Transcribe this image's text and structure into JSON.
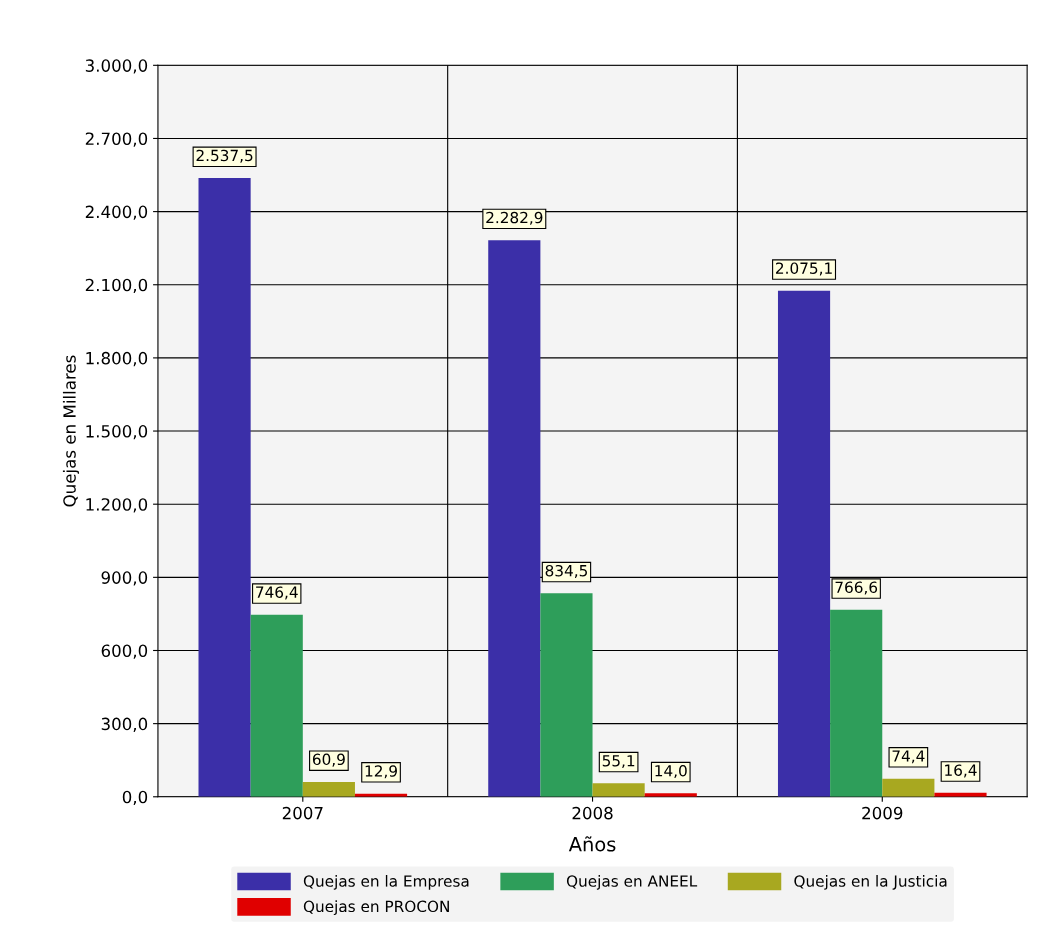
{
  "chart_data": {
    "type": "bar",
    "xlabel": "Años",
    "ylabel": "Quejas en Millares",
    "categories": [
      "2007",
      "2008",
      "2009"
    ],
    "series": [
      {
        "name": "Quejas en la Empresa",
        "color": "#3b2fa8",
        "values": [
          2537.5,
          2282.9,
          2075.1
        ],
        "value_labels": [
          "2.537,5",
          "2.282,9",
          "2.075,1"
        ]
      },
      {
        "name": "Quejas en ANEEL",
        "color": "#2e9e5a",
        "values": [
          746.4,
          834.5,
          766.6
        ],
        "value_labels": [
          "746,4",
          "834,5",
          "766,6"
        ]
      },
      {
        "name": "Quejas en la Justicia",
        "color": "#a8a820",
        "values": [
          60.9,
          55.1,
          74.4
        ],
        "value_labels": [
          "60,9",
          "55,1",
          "74,4"
        ]
      },
      {
        "name": "Quejas en PROCON",
        "color": "#e00000",
        "values": [
          12.9,
          14.0,
          16.4
        ],
        "value_labels": [
          "12,9",
          "14,0",
          "16,4"
        ]
      }
    ],
    "ylim": [
      0,
      3000
    ],
    "yticks": [
      {
        "value": 0,
        "label": "0,0"
      },
      {
        "value": 300,
        "label": "300,0"
      },
      {
        "value": 600,
        "label": "600,0"
      },
      {
        "value": 900,
        "label": "900,0"
      },
      {
        "value": 1200,
        "label": "1.200,0"
      },
      {
        "value": 1500,
        "label": "1.500,0"
      },
      {
        "value": 1800,
        "label": "1.800,0"
      },
      {
        "value": 2100,
        "label": "2.100,0"
      },
      {
        "value": 2400,
        "label": "2.400,0"
      },
      {
        "value": 2700,
        "label": "2.700,0"
      },
      {
        "value": 3000,
        "label": "3.000,0"
      }
    ],
    "grid": "y",
    "legend": "bottom"
  }
}
